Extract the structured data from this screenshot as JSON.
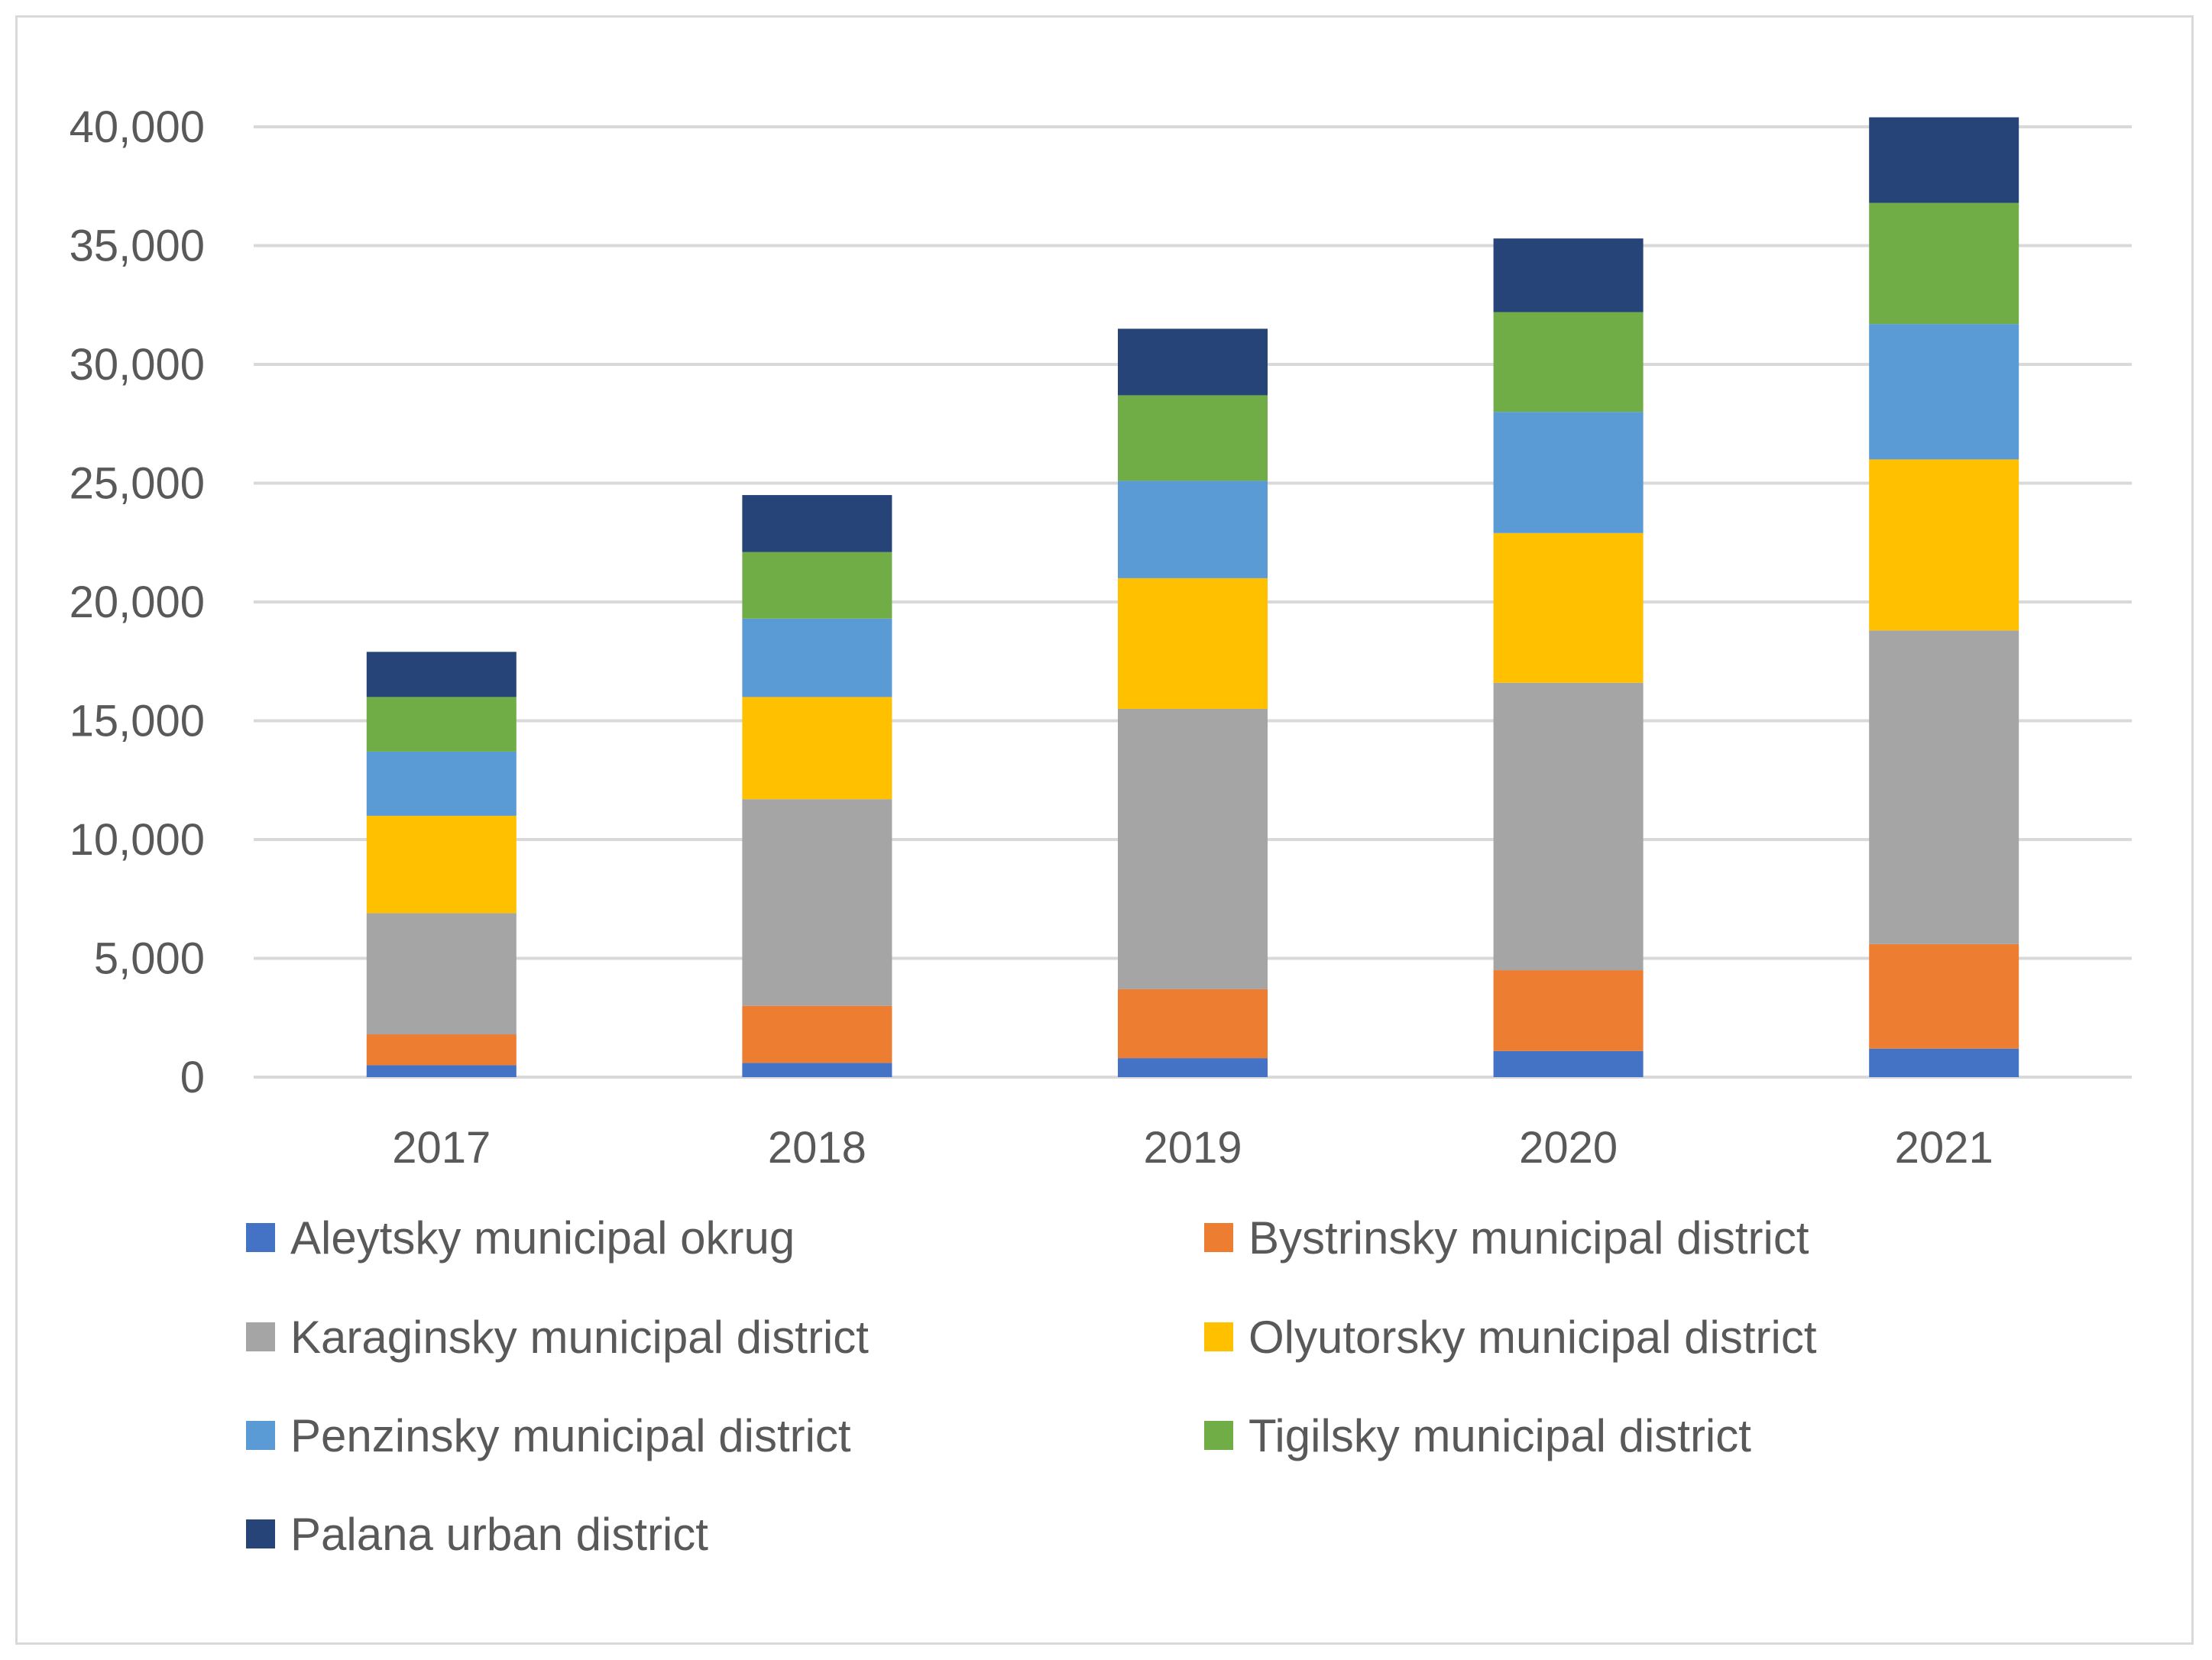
{
  "chart_data": {
    "type": "bar",
    "stacked": true,
    "categories": [
      "2017",
      "2018",
      "2019",
      "2020",
      "2021"
    ],
    "ylim": [
      0,
      40000
    ],
    "yticks": [
      0,
      5000,
      10000,
      15000,
      20000,
      25000,
      30000,
      35000,
      40000
    ],
    "ytick_labels": [
      "0",
      "5,000",
      "10,000",
      "15,000",
      "20,000",
      "25,000",
      "30,000",
      "35,000",
      "40,000"
    ],
    "grid": true,
    "legend_position": "bottom",
    "series": [
      {
        "name": "Aleytsky municipal okrug",
        "color": "#4472c4",
        "values": [
          500,
          600,
          800,
          1100,
          1200
        ]
      },
      {
        "name": "Bystrinsky municipal district",
        "color": "#ed7d31",
        "values": [
          1300,
          2400,
          2900,
          3400,
          4400
        ]
      },
      {
        "name": "Karaginsky municipal district",
        "color": "#a5a5a5",
        "values": [
          5100,
          8700,
          11800,
          12100,
          13200
        ]
      },
      {
        "name": "Olyutorsky municipal district",
        "color": "#ffc000",
        "values": [
          4100,
          4300,
          5500,
          6300,
          7200
        ]
      },
      {
        "name": "Penzinsky municipal district",
        "color": "#5b9bd5",
        "values": [
          2700,
          3300,
          4100,
          5100,
          5700
        ]
      },
      {
        "name": "Tigilsky municipal district",
        "color": "#70ad47",
        "values": [
          2300,
          2800,
          3600,
          4200,
          5100
        ]
      },
      {
        "name": "Palana urban district",
        "color": "#264478",
        "values": [
          1900,
          2400,
          2800,
          3100,
          3600
        ]
      }
    ]
  }
}
